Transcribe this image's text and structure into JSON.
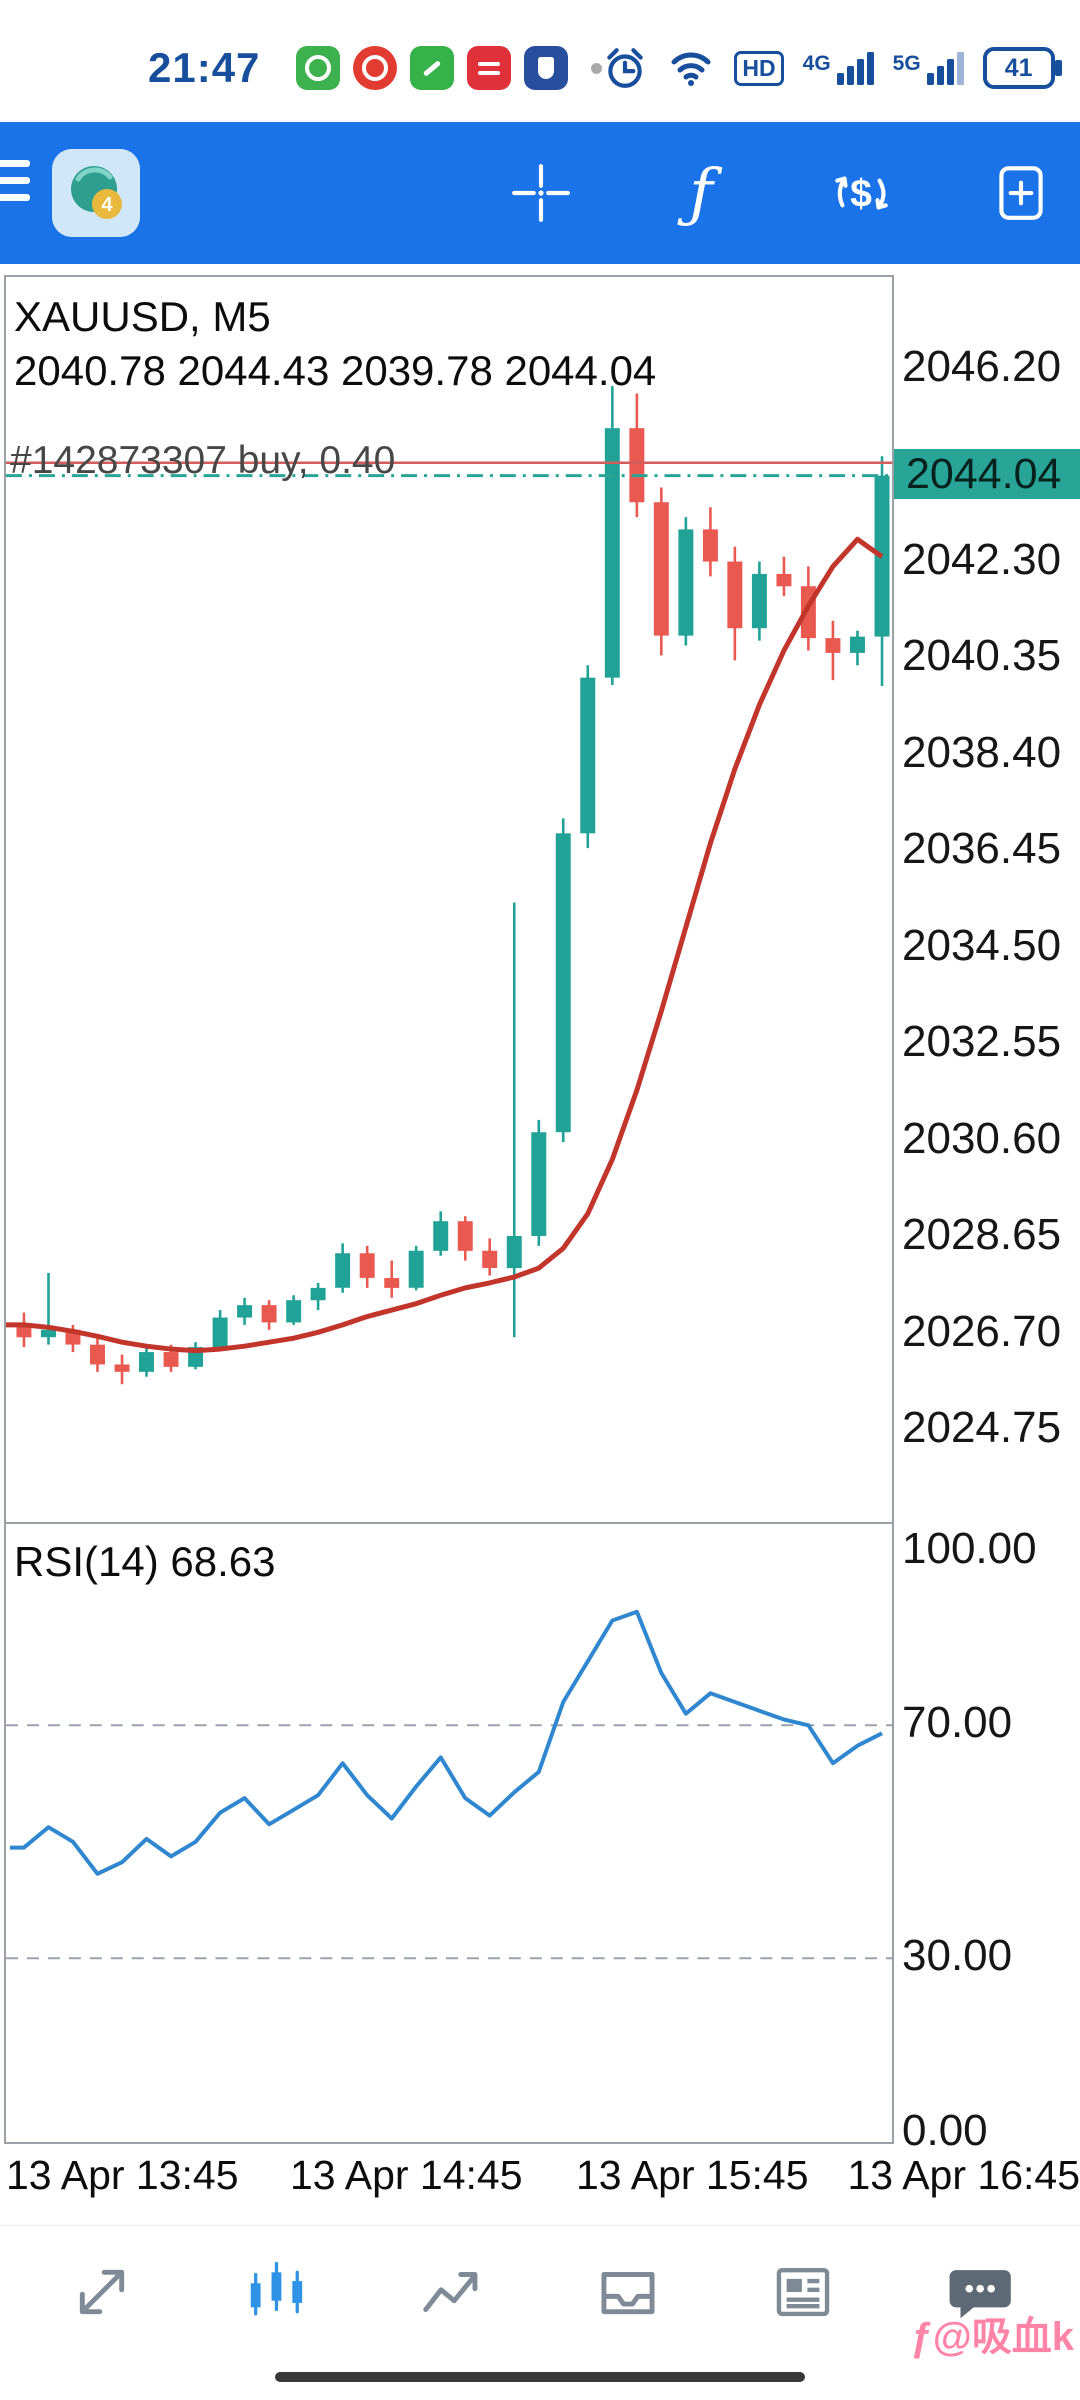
{
  "status_bar": {
    "time": "21:47",
    "hd": "HD",
    "net_4g": "4G",
    "net_5g": "5G",
    "battery": "41"
  },
  "toolbar": {
    "function_glyph": "ƒ",
    "dollar_glyph": "$",
    "icons": [
      "menu",
      "app-logo",
      "crosshair",
      "indicators",
      "trade-dollar",
      "new-order"
    ]
  },
  "chart": {
    "symbol_title": "XAUUSD, M5",
    "ohlc": "2040.78 2044.43 2039.78 2044.04",
    "position_label": "#142873307 buy, 0.40",
    "price_badge": "2044.04",
    "rsi_label": "RSI(14) 68.63"
  },
  "chart_data": {
    "type": "candlestick",
    "symbol": "XAUUSD",
    "timeframe": "M5",
    "current_bar_ohlc": [
      2040.78,
      2044.43,
      2039.78,
      2044.04
    ],
    "candles": [
      [
        2026.85,
        2027.1,
        2026.4,
        2026.6
      ],
      [
        2026.6,
        2027.9,
        2026.45,
        2026.75
      ],
      [
        2026.75,
        2026.85,
        2026.3,
        2026.45
      ],
      [
        2026.45,
        2026.6,
        2025.9,
        2026.05
      ],
      [
        2026.05,
        2026.25,
        2025.65,
        2025.9
      ],
      [
        2025.9,
        2026.4,
        2025.8,
        2026.3
      ],
      [
        2026.3,
        2026.45,
        2025.9,
        2026.0
      ],
      [
        2026.0,
        2026.5,
        2025.95,
        2026.4
      ],
      [
        2026.4,
        2027.15,
        2026.35,
        2027.0
      ],
      [
        2027.0,
        2027.4,
        2026.85,
        2027.25
      ],
      [
        2027.25,
        2027.35,
        2026.75,
        2026.9
      ],
      [
        2026.9,
        2027.45,
        2026.85,
        2027.35
      ],
      [
        2027.35,
        2027.7,
        2027.15,
        2027.6
      ],
      [
        2027.6,
        2028.5,
        2027.5,
        2028.3
      ],
      [
        2028.3,
        2028.45,
        2027.6,
        2027.8
      ],
      [
        2027.8,
        2028.15,
        2027.4,
        2027.6
      ],
      [
        2027.6,
        2028.45,
        2027.55,
        2028.35
      ],
      [
        2028.35,
        2029.15,
        2028.25,
        2028.95
      ],
      [
        2028.95,
        2029.05,
        2028.15,
        2028.35
      ],
      [
        2028.35,
        2028.6,
        2027.85,
        2028.0
      ],
      [
        2028.0,
        2035.4,
        2026.6,
        2028.65
      ],
      [
        2028.65,
        2031.0,
        2028.45,
        2030.75
      ],
      [
        2030.75,
        2037.1,
        2030.55,
        2036.8
      ],
      [
        2036.8,
        2040.2,
        2036.5,
        2039.95
      ],
      [
        2039.95,
        2045.85,
        2039.8,
        2045.0
      ],
      [
        2045.0,
        2045.7,
        2043.2,
        2043.5
      ],
      [
        2043.5,
        2043.8,
        2040.4,
        2040.8
      ],
      [
        2040.8,
        2043.2,
        2040.6,
        2042.95
      ],
      [
        2042.95,
        2043.4,
        2042.0,
        2042.3
      ],
      [
        2042.3,
        2042.6,
        2040.3,
        2040.95
      ],
      [
        2040.95,
        2042.3,
        2040.7,
        2042.05
      ],
      [
        2042.05,
        2042.4,
        2041.6,
        2041.8
      ],
      [
        2041.8,
        2042.2,
        2040.5,
        2040.75
      ],
      [
        2040.75,
        2041.1,
        2039.9,
        2040.45
      ],
      [
        2040.45,
        2040.9,
        2040.2,
        2040.78
      ],
      [
        2040.78,
        2044.43,
        2039.78,
        2044.04
      ]
    ],
    "ma_red": [
      2026.85,
      2026.8,
      2026.72,
      2026.62,
      2026.5,
      2026.42,
      2026.36,
      2026.33,
      2026.36,
      2026.42,
      2026.5,
      2026.58,
      2026.7,
      2026.85,
      2027.02,
      2027.15,
      2027.28,
      2027.45,
      2027.6,
      2027.7,
      2027.82,
      2028.0,
      2028.4,
      2029.1,
      2030.2,
      2031.6,
      2033.2,
      2034.9,
      2036.6,
      2038.1,
      2039.4,
      2040.5,
      2041.4,
      2042.2,
      2042.75,
      2042.4
    ],
    "price_axis": {
      "ticks": [
        2046.2,
        2042.3,
        2040.35,
        2038.4,
        2036.45,
        2034.5,
        2032.55,
        2030.6,
        2028.65,
        2026.7,
        2024.75
      ],
      "visible_min": 2022.9,
      "visible_max": 2048.0,
      "tick_step": 1.95
    },
    "current_price": 2044.04,
    "position": {
      "id": "#142873307",
      "type": "buy",
      "volume": 0.4,
      "price": 2044.3,
      "label": "#142873307 buy, 0.40"
    },
    "rsi": {
      "period": 14,
      "value": 68.63,
      "ticks": [
        100,
        70,
        30,
        0
      ],
      "levels": [
        70,
        30
      ],
      "series": [
        49,
        52.5,
        50,
        44.5,
        46.5,
        50.5,
        47.5,
        50,
        55,
        57.5,
        53,
        55.5,
        58,
        63.5,
        58,
        54,
        59.5,
        64.5,
        57.5,
        54.5,
        58.5,
        62,
        74,
        81,
        88,
        89.5,
        79,
        72,
        75.5,
        74,
        72.5,
        71,
        70,
        63.5,
        66.5,
        68.63
      ]
    },
    "x_labels": [
      "13 Apr 13:45",
      "13 Apr 14:45",
      "13 Apr 15:45",
      "13 Apr 16:45"
    ],
    "colors": {
      "up": "#20a396",
      "down": "#ea5950",
      "ma": "#c1352b",
      "rsi": "#2f87d0",
      "current_price_line": "#28a596",
      "position_line": "#d35d5d",
      "badge_bg": "#28a596",
      "appbar": "#1a73e8",
      "active_tab": "#2e93e6",
      "inactive_tab": "#7e8b97"
    }
  },
  "bottom_nav": {
    "icons": [
      "trend-arrows",
      "candlestick-chart",
      "line-chart",
      "trade-tray",
      "news",
      "chat"
    ],
    "active": "candlestick-chart"
  },
  "watermark": {
    "text": "ƒ@吸血k"
  }
}
